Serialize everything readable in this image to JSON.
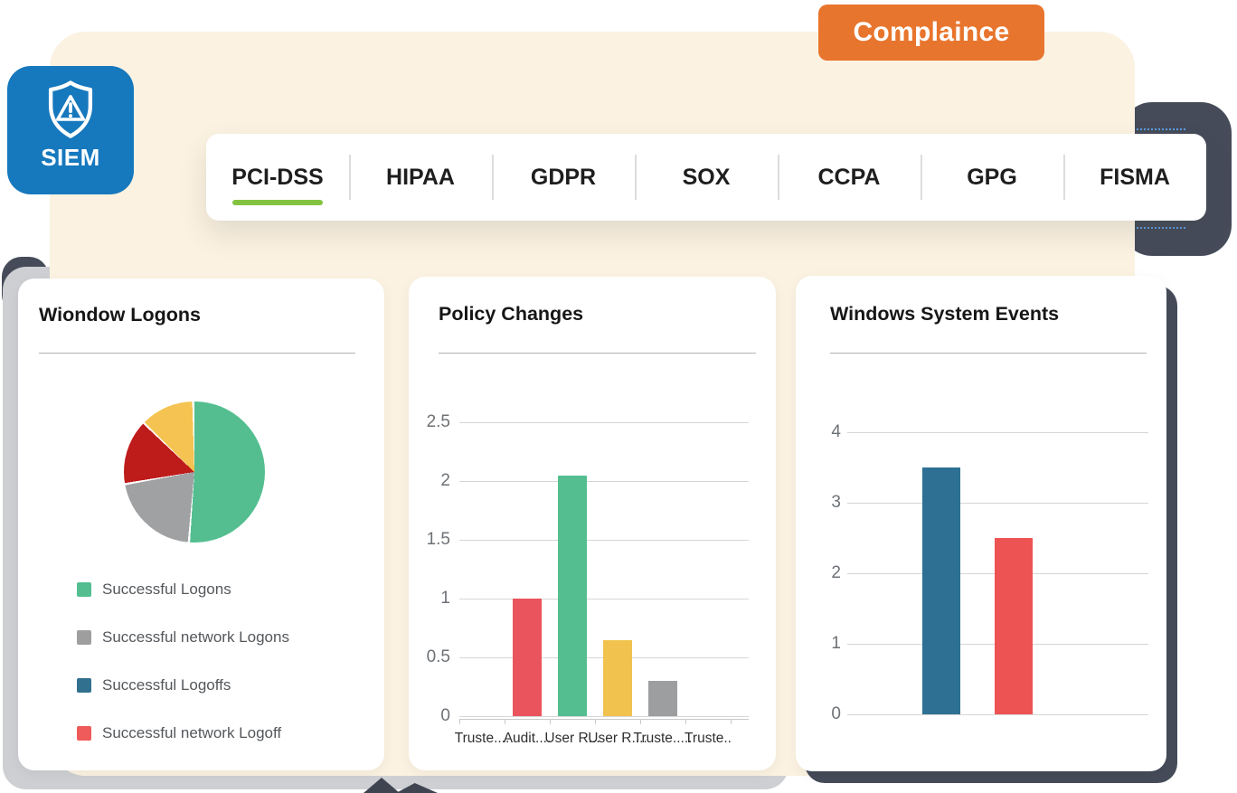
{
  "badge": {
    "label": "Complaince",
    "bg_color": "#E8752D",
    "text_color": "#FFFFFF"
  },
  "logo": {
    "label": "SIEM",
    "bg_color": "#1678BD",
    "icon": "shield-alert-icon"
  },
  "tabs": {
    "active_index": 0,
    "active_underline_color": "#84C341",
    "items": [
      {
        "label": "PCI-DSS"
      },
      {
        "label": "HIPAA"
      },
      {
        "label": "GDPR"
      },
      {
        "label": "SOX"
      },
      {
        "label": "CCPA"
      },
      {
        "label": "GPG"
      },
      {
        "label": "FISMA"
      }
    ]
  },
  "chart_data": [
    {
      "type": "pie",
      "title": "Wiondow Logons",
      "slices": [
        {
          "label": "Successful Logons",
          "value": 51.5,
          "color": "#54BE90"
        },
        {
          "label": "Successful network Logons",
          "value": 21,
          "color": "#9FA1A3"
        },
        {
          "label": "Successful Logoffs",
          "value": 15,
          "color": "#BE1B1B"
        },
        {
          "label": "Successful network Logoff",
          "value": 12.5,
          "color": "#F4C351"
        }
      ],
      "legend": [
        {
          "label": "Successful Logons",
          "color": "#54BE90"
        },
        {
          "label": "Successful network Logons",
          "color": "#9E9E9E"
        },
        {
          "label": "Successful Logoffs",
          "color": "#31708F"
        },
        {
          "label": "Successful network Logoff",
          "color": "#EF5A5A"
        }
      ],
      "legend_position": "bottom-left"
    },
    {
      "type": "bar",
      "title": "Policy Changes",
      "categories": [
        "Truste....",
        "Audit....",
        "User R...",
        "User R....",
        "Truste.....",
        "Truste.."
      ],
      "values": [
        0,
        1.0,
        2.05,
        0.65,
        0.3,
        0
      ],
      "bar_colors": [
        null,
        "#EA545C",
        "#54BE90",
        "#F2C24F",
        "#9C9EA0",
        null
      ],
      "ylim": [
        0,
        2.5
      ],
      "yticks": [
        0,
        0.5,
        1,
        1.5,
        2,
        2.5
      ],
      "grid": true,
      "legend_position": "none"
    },
    {
      "type": "bar",
      "title": "Windows System Events",
      "categories": [
        "",
        ""
      ],
      "values": [
        3.5,
        2.5
      ],
      "bar_colors": [
        "#2E7093",
        "#EE5353"
      ],
      "ylim": [
        0,
        4
      ],
      "yticks": [
        0,
        1,
        2,
        3,
        4
      ],
      "grid": true,
      "legend_position": "none"
    }
  ]
}
